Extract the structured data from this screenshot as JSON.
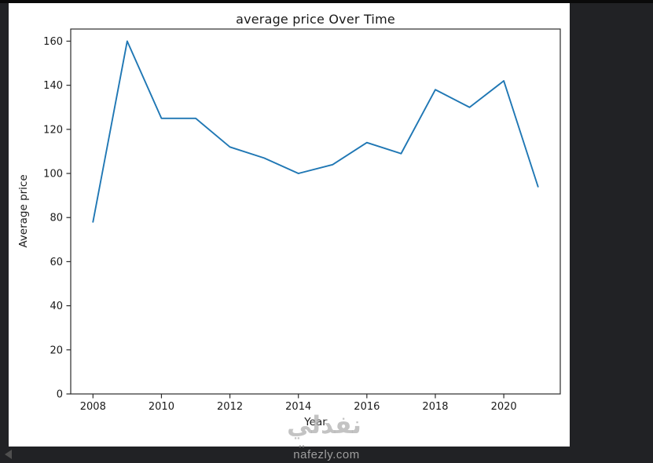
{
  "window": {
    "background_color": "#212225",
    "figure_background": "#ffffff"
  },
  "chart_data": {
    "type": "line",
    "title": "average price Over Time",
    "xlabel": "Year",
    "ylabel": "Average price",
    "x": [
      2008,
      2009,
      2010,
      2011,
      2012,
      2013,
      2014,
      2015,
      2016,
      2017,
      2018,
      2019,
      2020,
      2021
    ],
    "series": [
      {
        "name": "average price",
        "color": "#1f77b4",
        "values": [
          78,
          160,
          125,
          125,
          112,
          107,
          100,
          104,
          114,
          109,
          138,
          130,
          142,
          94
        ]
      }
    ],
    "xlim": [
      2007.35,
      2021.65
    ],
    "ylim": [
      0,
      165.5
    ],
    "xticks": [
      2008,
      2010,
      2012,
      2014,
      2016,
      2018,
      2020
    ],
    "yticks": [
      0,
      20,
      40,
      60,
      80,
      100,
      120,
      140,
      160
    ],
    "grid": false,
    "legend": "none",
    "spine_color": "#2b2b2b",
    "tick_label_color": "#1a1a1a",
    "tick_font_size": 13
  },
  "watermark": {
    "overlay_text": "نفذلي",
    "footer_text": "nafezly.com",
    "footer_dots": "••"
  }
}
